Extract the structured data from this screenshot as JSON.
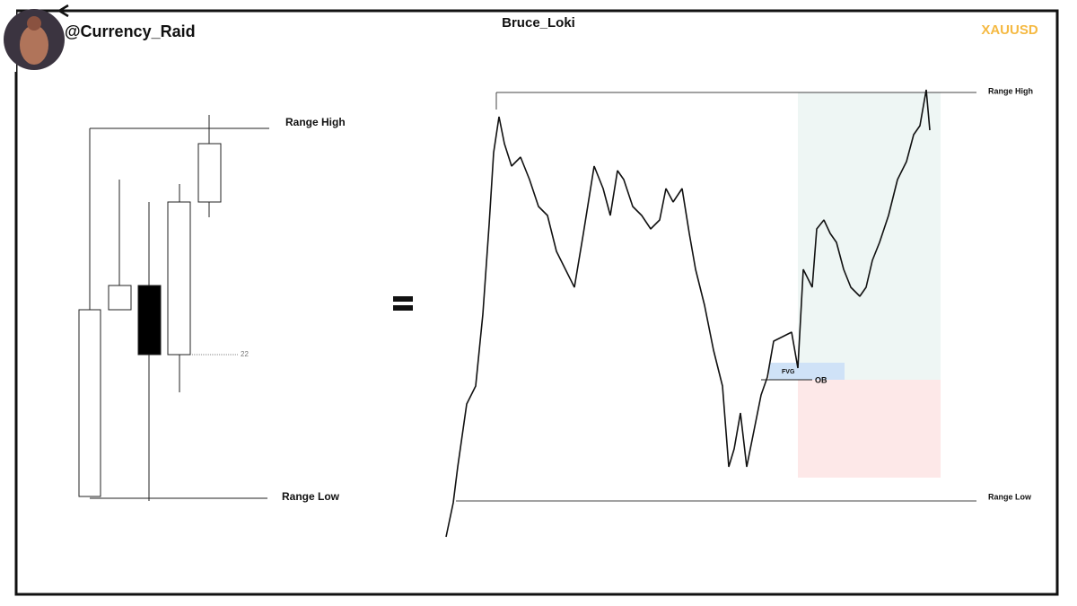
{
  "header": {
    "handle": "@Currency_Raid",
    "author": "Bruce_Loki",
    "symbol": "XAUUSD"
  },
  "left_diagram": {
    "range_high": "Range High",
    "range_low": "Range Low",
    "level_label": 22
  },
  "right_chart": {
    "range_high": "Range High",
    "range_low": "Range Low",
    "fvg": "FVG",
    "ob": "OB"
  }
}
